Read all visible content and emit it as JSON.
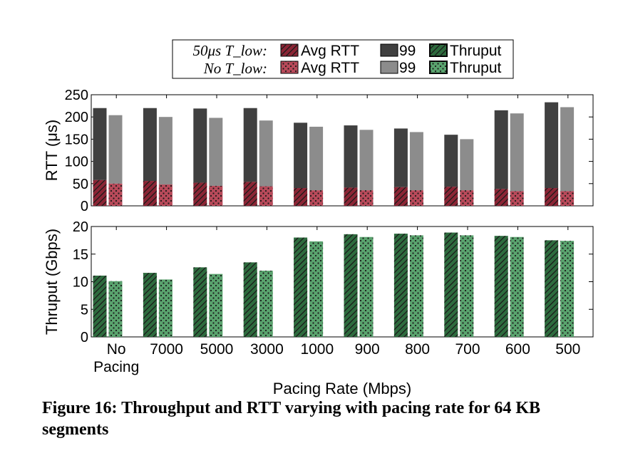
{
  "legend": {
    "row1_label": "50μs T_low:",
    "row2_label": "No T_low:",
    "avg_label": "Avg RTT",
    "p99_label": "99",
    "thruput_label": "Thruput"
  },
  "caption": "Figure 16: Throughput and RTT varying with pacing rate for 64 KB segments",
  "colors": {
    "avg_with": "#8b2535",
    "avg_without": "#b84a5a",
    "p99_with": "#404040",
    "p99_without": "#8c8c8c",
    "thru_with": "#2e6b3e",
    "thru_without": "#5aa36e"
  },
  "chart_data": [
    {
      "type": "bar",
      "title": "",
      "xlabel": "",
      "ylabel": "RTT (μs)",
      "ylim": [
        0,
        250
      ],
      "yticks": [
        0,
        50,
        100,
        150,
        200,
        250
      ],
      "categories": [
        "No Pacing",
        "7000",
        "5000",
        "3000",
        "1000",
        "900",
        "800",
        "700",
        "600",
        "500"
      ],
      "series": [
        {
          "name": "50μs T_low: Avg RTT",
          "values": [
            58,
            56,
            52,
            54,
            40,
            41,
            42,
            43,
            38,
            40
          ]
        },
        {
          "name": "50μs T_low: 99",
          "values": [
            220,
            220,
            219,
            220,
            187,
            181,
            174,
            160,
            215,
            233
          ]
        },
        {
          "name": "No T_low: Avg RTT",
          "values": [
            50,
            48,
            45,
            44,
            35,
            35,
            35,
            35,
            33,
            33
          ]
        },
        {
          "name": "No T_low: 99",
          "values": [
            204,
            200,
            198,
            192,
            178,
            171,
            166,
            150,
            208,
            222
          ]
        }
      ]
    },
    {
      "type": "bar",
      "title": "",
      "xlabel": "Pacing Rate (Mbps)",
      "ylabel": "Thruput (Gbps)",
      "ylim": [
        0,
        20
      ],
      "yticks": [
        0,
        5,
        10,
        15,
        20
      ],
      "categories": [
        "No Pacing",
        "7000",
        "5000",
        "3000",
        "1000",
        "900",
        "800",
        "700",
        "600",
        "500"
      ],
      "tick_labels": [
        [
          "No",
          "Pacing"
        ],
        [
          "7000"
        ],
        [
          "5000"
        ],
        [
          "3000"
        ],
        [
          "1000"
        ],
        [
          "900"
        ],
        [
          "800"
        ],
        [
          "700"
        ],
        [
          "600"
        ],
        [
          "500"
        ]
      ],
      "series": [
        {
          "name": "50μs T_low: Thruput",
          "values": [
            11.1,
            11.6,
            12.6,
            13.5,
            18.0,
            18.6,
            18.7,
            18.9,
            18.3,
            17.5
          ]
        },
        {
          "name": "No T_low: Thruput",
          "values": [
            10.1,
            10.4,
            11.4,
            12.0,
            17.3,
            18.1,
            18.4,
            18.4,
            18.1,
            17.4
          ]
        }
      ]
    }
  ]
}
